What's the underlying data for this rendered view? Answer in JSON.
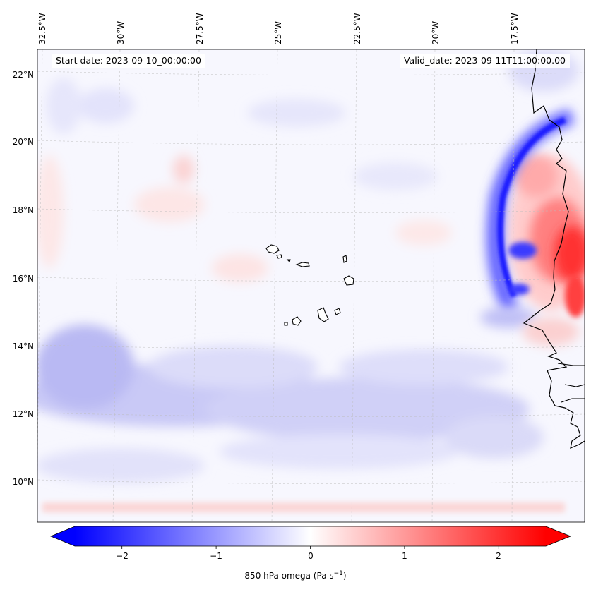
{
  "header": {
    "start_date": "Start date: 2023-09-10_00:00:00",
    "valid_date": "Valid_date: 2023-09-11T11:00:00.00"
  },
  "axes": {
    "lon_labels": [
      "32.5°W",
      "30°W",
      "27.5°W",
      "25°W",
      "22.5°W",
      "20°W",
      "17.5°W"
    ],
    "lat_labels": [
      "22°N",
      "20°N",
      "18°N",
      "16°N",
      "14°N",
      "12°N",
      "10°N"
    ],
    "gridlines": true
  },
  "colorbar": {
    "ticks": [
      "−2",
      "−1",
      "0",
      "1",
      "2"
    ],
    "tick_values": [
      -2,
      -1,
      0,
      1,
      2
    ],
    "range": [
      -2.5,
      2.5
    ],
    "extend": "both",
    "colormap": "bwr",
    "title_prefix": "850 hPa omega (Pa s",
    "title_exp": "−1",
    "title_suffix": ")",
    "colors": {
      "min": "#0000ff",
      "mid": "#ffffff",
      "max": "#ff0000"
    }
  },
  "map": {
    "variable": "850 hPa omega",
    "extent": {
      "lon": [
        -33,
        -15.5
      ],
      "lat": [
        8.8,
        22.8
      ]
    },
    "coastline_color": "#000000",
    "features": [
      "Cape Verde islands",
      "West African coastline"
    ]
  }
}
